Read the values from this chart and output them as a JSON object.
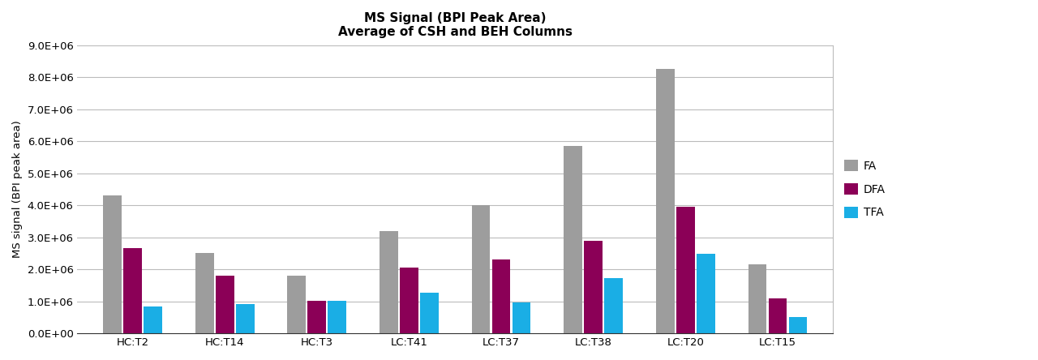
{
  "title_line1": "MS Signal (BPI Peak Area)",
  "title_line2": "Average of CSH and BEH Columns",
  "ylabel": "MS signal (BPI peak area)",
  "categories": [
    "HC:T2",
    "HC:T14",
    "HC:T3",
    "LC:T41",
    "LC:T37",
    "LC:T38",
    "LC:T20",
    "LC:T15"
  ],
  "series": {
    "FA": [
      4300000,
      2500000,
      1800000,
      3200000,
      4000000,
      5850000,
      8250000,
      2150000
    ],
    "DFA": [
      2650000,
      1800000,
      1020000,
      2050000,
      2300000,
      2900000,
      3950000,
      1080000
    ],
    "TFA": [
      850000,
      920000,
      1010000,
      1280000,
      960000,
      1730000,
      2480000,
      520000
    ]
  },
  "colors": {
    "FA": "#9d9d9d",
    "DFA": "#8B0057",
    "TFA": "#1aaee5"
  },
  "ylim": [
    0,
    9000000
  ],
  "yticks": [
    0,
    1000000,
    2000000,
    3000000,
    4000000,
    5000000,
    6000000,
    7000000,
    8000000,
    9000000
  ],
  "ytick_labels": [
    "0.0E+00",
    "1.0E+06",
    "2.0E+06",
    "3.0E+06",
    "4.0E+06",
    "5.0E+06",
    "6.0E+06",
    "7.0E+06",
    "8.0E+06",
    "9.0E+06"
  ],
  "legend_labels": [
    "FA",
    "DFA",
    "TFA"
  ],
  "background_color": "#ffffff",
  "grid_color": "#bbbbbb",
  "bar_width": 0.2,
  "bar_gap": 0.02
}
